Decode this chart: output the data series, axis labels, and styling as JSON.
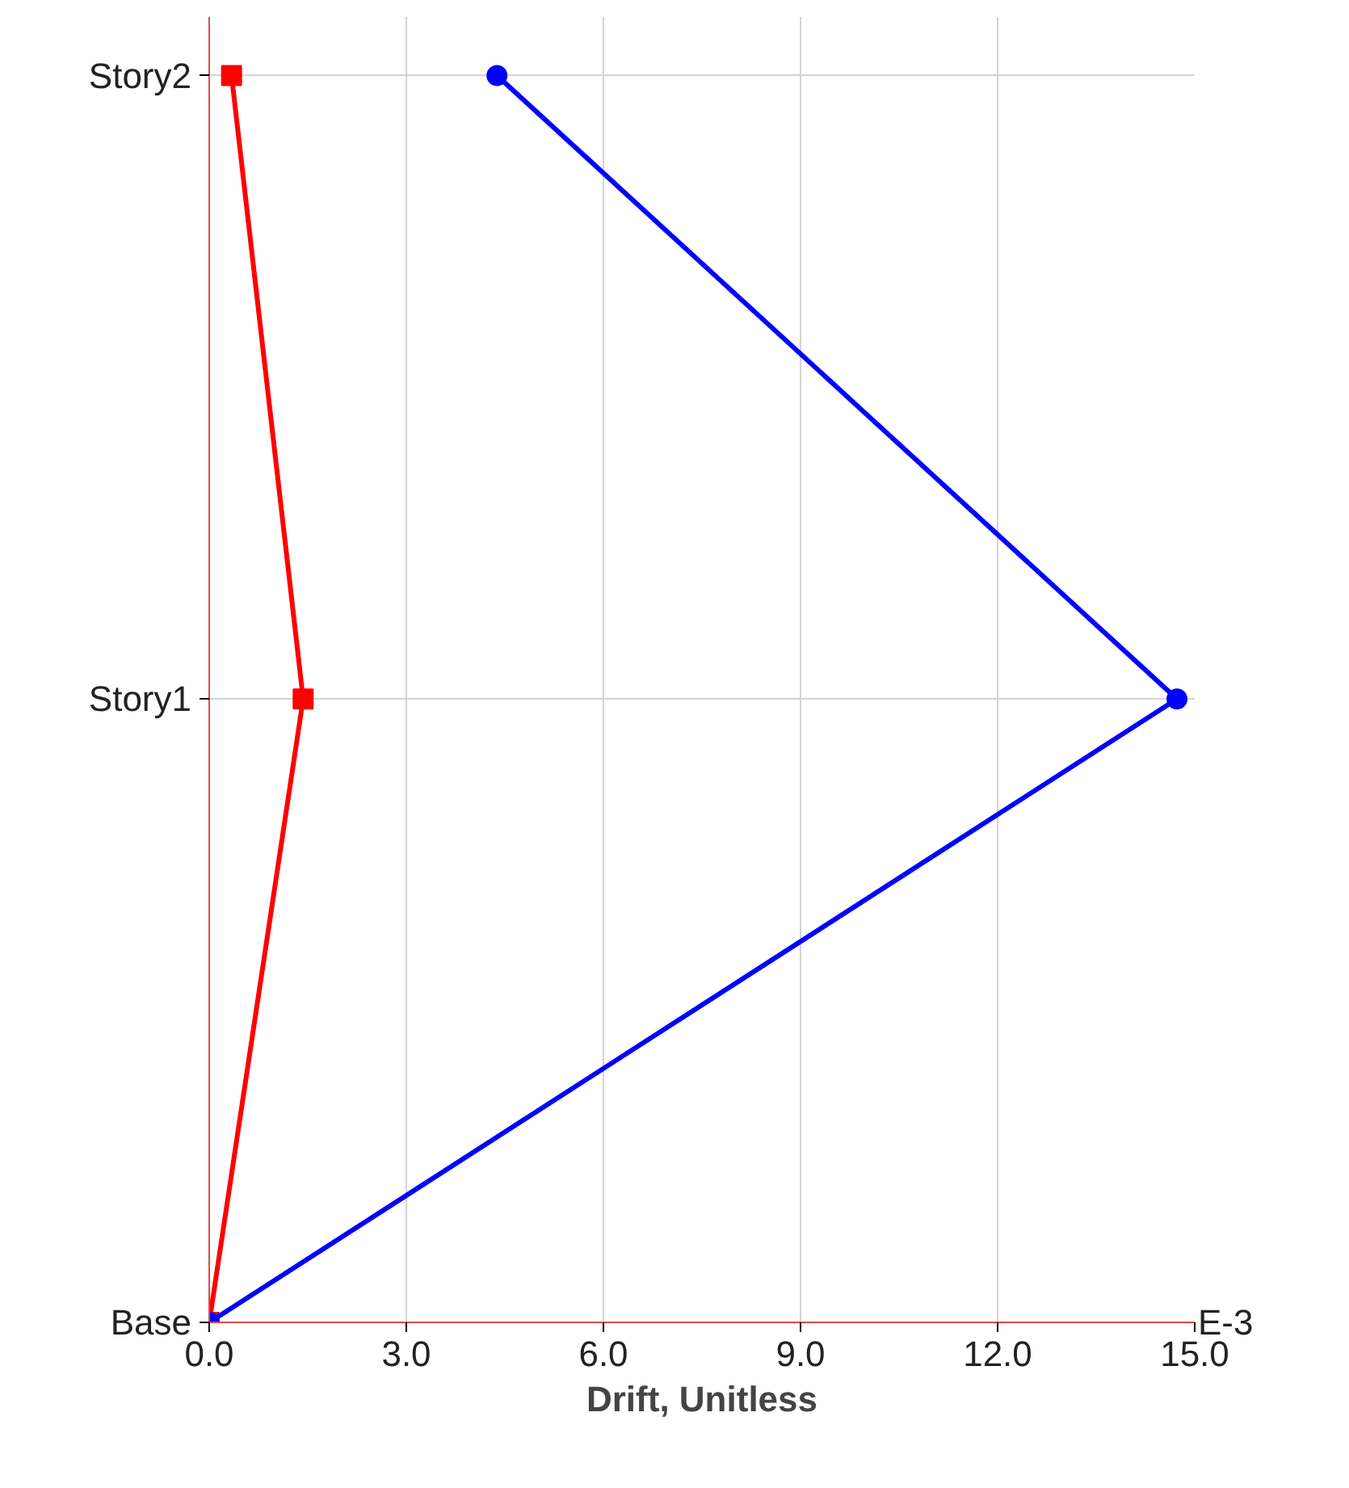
{
  "chart_data": {
    "type": "line",
    "orientation": "horizontal",
    "xlabel": "Drift, Unitless",
    "categories": [
      "Story2",
      "Story1",
      "Base"
    ],
    "series": [
      {
        "color": "#ff0000",
        "values": [
          0.34,
          1.43,
          0
        ],
        "marker": "square"
      },
      {
        "color": "#0000ff",
        "values": [
          4.38,
          14.73,
          0
        ],
        "marker": "circle"
      }
    ],
    "xlim": [
      0,
      15
    ],
    "xticks": [
      {
        "value": 0,
        "label": "0.0"
      },
      {
        "value": 3,
        "label": "3.0"
      },
      {
        "value": 6,
        "label": "6.0"
      },
      {
        "value": 9,
        "label": "9.0"
      },
      {
        "value": 12,
        "label": "12.0"
      },
      {
        "value": 15,
        "label": "15.0"
      }
    ],
    "annotations": [
      "E-3"
    ],
    "grid": true,
    "line_style": "solid"
  }
}
